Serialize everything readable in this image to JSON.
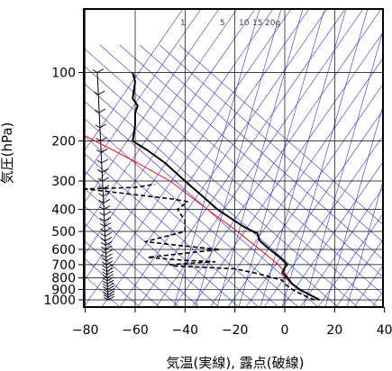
{
  "chart_data": {
    "type": "line",
    "title": "",
    "xlabel": "気温(実線), 露点(破線)",
    "ylabel": "気圧(hPa)",
    "xlim": [
      -80,
      40
    ],
    "ylim": [
      1050,
      100
    ],
    "y_scale": "log",
    "x_ticks": [
      -80,
      -60,
      -40,
      -20,
      0,
      20,
      40
    ],
    "x_tick_labels": [
      "−80",
      "−60",
      "−40",
      "−20",
      "0",
      "20",
      "40"
    ],
    "y_ticks": [
      1000,
      900,
      800,
      700,
      600,
      500,
      400,
      300,
      200,
      100
    ],
    "y_tick_labels": [
      "1000",
      "900",
      "800",
      "700",
      "600",
      "500",
      "400",
      "300",
      "200",
      "100"
    ],
    "grid": true,
    "mixing_ratio_labels": [
      "1",
      "5",
      "10",
      "15",
      "20g"
    ],
    "colors": {
      "background_lines": "#3333cc",
      "parcel": "#ff0000",
      "temperature": "#000000",
      "dewpoint": "#000000",
      "grid": "#000000"
    },
    "series": [
      {
        "role": "temperature",
        "points": [
          [
            14,
            1000
          ],
          [
            10,
            950
          ],
          [
            6,
            900
          ],
          [
            3,
            850
          ],
          [
            1,
            800
          ],
          [
            -1,
            760
          ],
          [
            0,
            720
          ],
          [
            1,
            700
          ],
          [
            -2,
            650
          ],
          [
            -6,
            600
          ],
          [
            -10,
            550
          ],
          [
            -11,
            510
          ],
          [
            -16,
            480
          ],
          [
            -20,
            450
          ],
          [
            -27,
            400
          ],
          [
            -33,
            350
          ],
          [
            -40,
            300
          ],
          [
            -48,
            250
          ],
          [
            -55,
            220
          ],
          [
            -61,
            200
          ],
          [
            -60,
            170
          ],
          [
            -60,
            150
          ],
          [
            -59,
            140
          ],
          [
            -61,
            130
          ],
          [
            -60,
            110
          ],
          [
            -61,
            100
          ]
        ]
      },
      {
        "role": "dewpoint",
        "points": [
          [
            12,
            1000
          ],
          [
            7,
            950
          ],
          [
            3,
            900
          ],
          [
            0,
            850
          ],
          [
            -1,
            820
          ],
          [
            -10,
            770
          ],
          [
            -20,
            730
          ],
          [
            -44,
            710
          ],
          [
            -46,
            700
          ],
          [
            -38,
            690
          ],
          [
            -28,
            680
          ],
          [
            -40,
            670
          ],
          [
            -55,
            650
          ],
          [
            -26,
            600
          ],
          [
            -40,
            580
          ],
          [
            -56,
            555
          ],
          [
            -49,
            530
          ],
          [
            -46,
            520
          ],
          [
            -40,
            500
          ],
          [
            -40,
            450
          ],
          [
            -43,
            400
          ],
          [
            -39,
            370
          ],
          [
            -45,
            360
          ],
          [
            -75,
            330
          ],
          [
            -80,
            325
          ],
          [
            -60,
            320
          ],
          [
            -52,
            310
          ]
        ]
      },
      {
        "role": "parcel",
        "points": [
          [
            14,
            1000
          ],
          [
            7.6,
            920
          ],
          [
            2.5,
            850
          ],
          [
            1.5,
            800
          ],
          [
            -2.5,
            700
          ],
          [
            -10,
            600
          ],
          [
            -19,
            500
          ],
          [
            -31,
            400
          ],
          [
            -46,
            300
          ],
          [
            -59,
            250
          ],
          [
            -76,
            200
          ],
          [
            -80,
            190
          ]
        ]
      }
    ],
    "wind_barbs": {
      "side": "left",
      "pressures": [
        1000,
        975,
        950,
        925,
        900,
        875,
        850,
        825,
        800,
        775,
        750,
        725,
        700,
        675,
        650,
        625,
        600,
        575,
        550,
        525,
        500,
        475,
        450,
        425,
        400,
        375,
        350,
        325,
        300,
        275,
        250,
        225,
        200,
        175,
        150,
        125,
        100
      ]
    }
  }
}
